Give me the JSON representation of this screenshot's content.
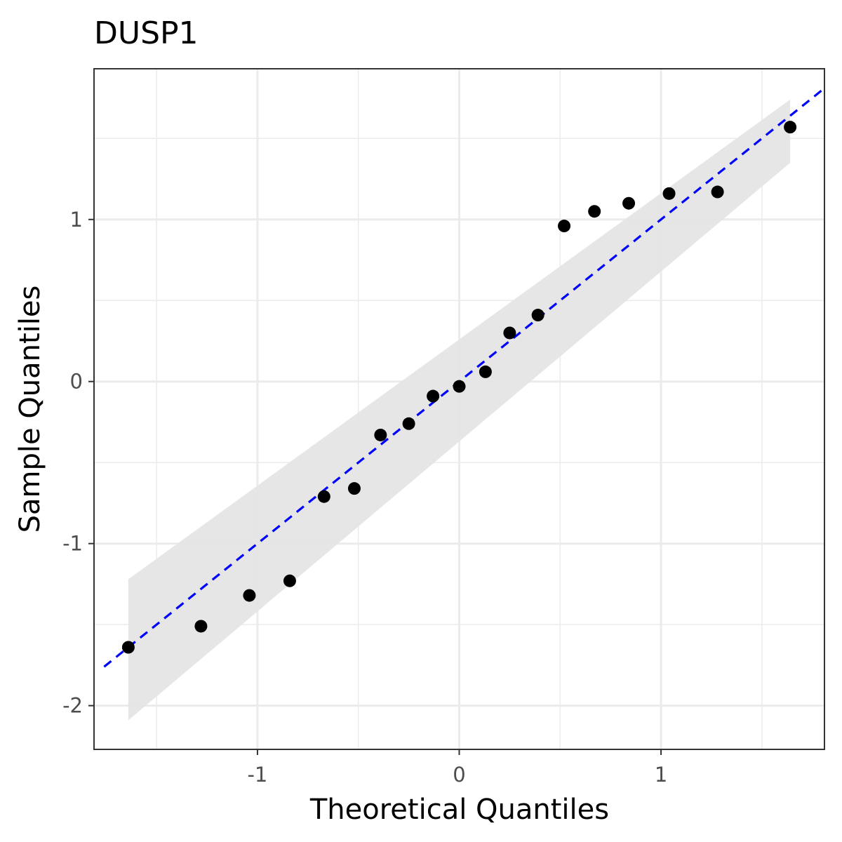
{
  "chart_data": {
    "type": "scatter",
    "title": "DUSP1",
    "xlabel": "Theoretical Quantiles",
    "ylabel": "Sample Quantiles",
    "xlim": [
      -1.81,
      1.81
    ],
    "ylim": [
      -2.27,
      1.93
    ],
    "x_ticks": [
      -1,
      0,
      1
    ],
    "x_tick_labels": [
      "-1",
      "0",
      "1"
    ],
    "y_ticks": [
      -2,
      -1,
      0,
      1
    ],
    "y_tick_labels": [
      "-2",
      "-1",
      "0",
      "1"
    ],
    "grid": true,
    "reference_line": {
      "intercept": 0.0,
      "slope": 1.0,
      "color": "#0000ff",
      "style": "dashed"
    },
    "confidence_band": {
      "color": "#e5e5e5",
      "x": [
        -1.64,
        1.64
      ],
      "lower": [
        -2.09,
        1.35
      ],
      "upper": [
        -1.22,
        1.74
      ]
    },
    "points": {
      "color": "#000000",
      "x": [
        -1.64,
        -1.28,
        -1.04,
        -0.84,
        -0.67,
        -0.52,
        -0.39,
        -0.25,
        -0.13,
        0.0,
        0.13,
        0.25,
        0.39,
        0.52,
        0.67,
        0.84,
        1.04,
        1.28,
        1.64
      ],
      "y": [
        -1.64,
        -1.51,
        -1.32,
        -1.23,
        -0.71,
        -0.66,
        -0.33,
        -0.26,
        -0.09,
        -0.03,
        0.06,
        0.3,
        0.41,
        0.96,
        1.05,
        1.1,
        1.16,
        1.17,
        1.57
      ]
    }
  }
}
